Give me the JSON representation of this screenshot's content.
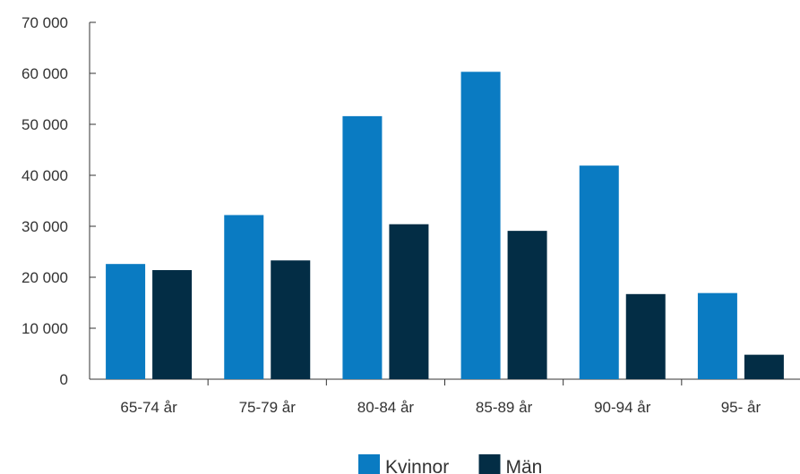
{
  "chart_data": {
    "type": "bar",
    "categories": [
      "65-74 år",
      "75-79 år",
      "80-84 år",
      "85-89 år",
      "90-94 år",
      "95- år"
    ],
    "series": [
      {
        "name": "Kvinnor",
        "color": "#0a7bc2",
        "values": [
          22600,
          32200,
          51600,
          60300,
          41900,
          16900
        ]
      },
      {
        "name": "Män",
        "color": "#032d45",
        "values": [
          21400,
          23300,
          30400,
          29100,
          16700,
          4800
        ]
      }
    ],
    "yticks": [
      0,
      10000,
      20000,
      30000,
      40000,
      50000,
      60000,
      70000
    ],
    "ytick_labels": [
      "0",
      "10 000",
      "20 000",
      "30 000",
      "40 000",
      "50 000",
      "60 000",
      "70 000"
    ],
    "ylim": [
      0,
      70000
    ],
    "grid": false,
    "legend_position": "bottom-center",
    "title": "",
    "xlabel": "",
    "ylabel": ""
  }
}
